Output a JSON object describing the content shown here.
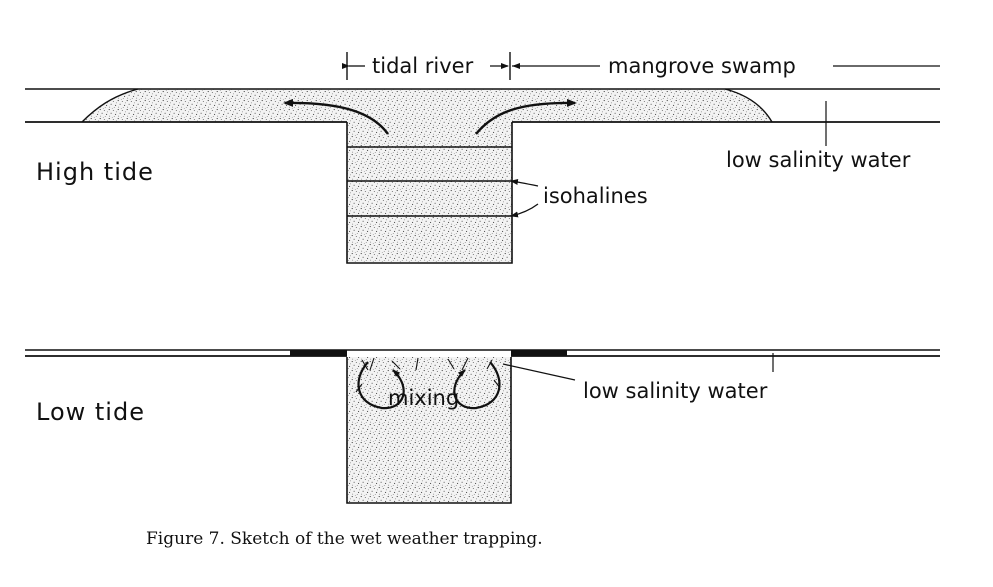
{
  "labels": {
    "tidal_river": "tidal river",
    "mangrove_swamp": "mangrove swamp",
    "high_tide": "High tide",
    "low_tide": "Low tide",
    "isohalines": "isohalines",
    "low_salinity_water_top": "low salinity water",
    "low_salinity_water_bottom": "low salinity water",
    "mixing": "mixing"
  },
  "caption": "Figure 7. Sketch of the wet weather trapping."
}
